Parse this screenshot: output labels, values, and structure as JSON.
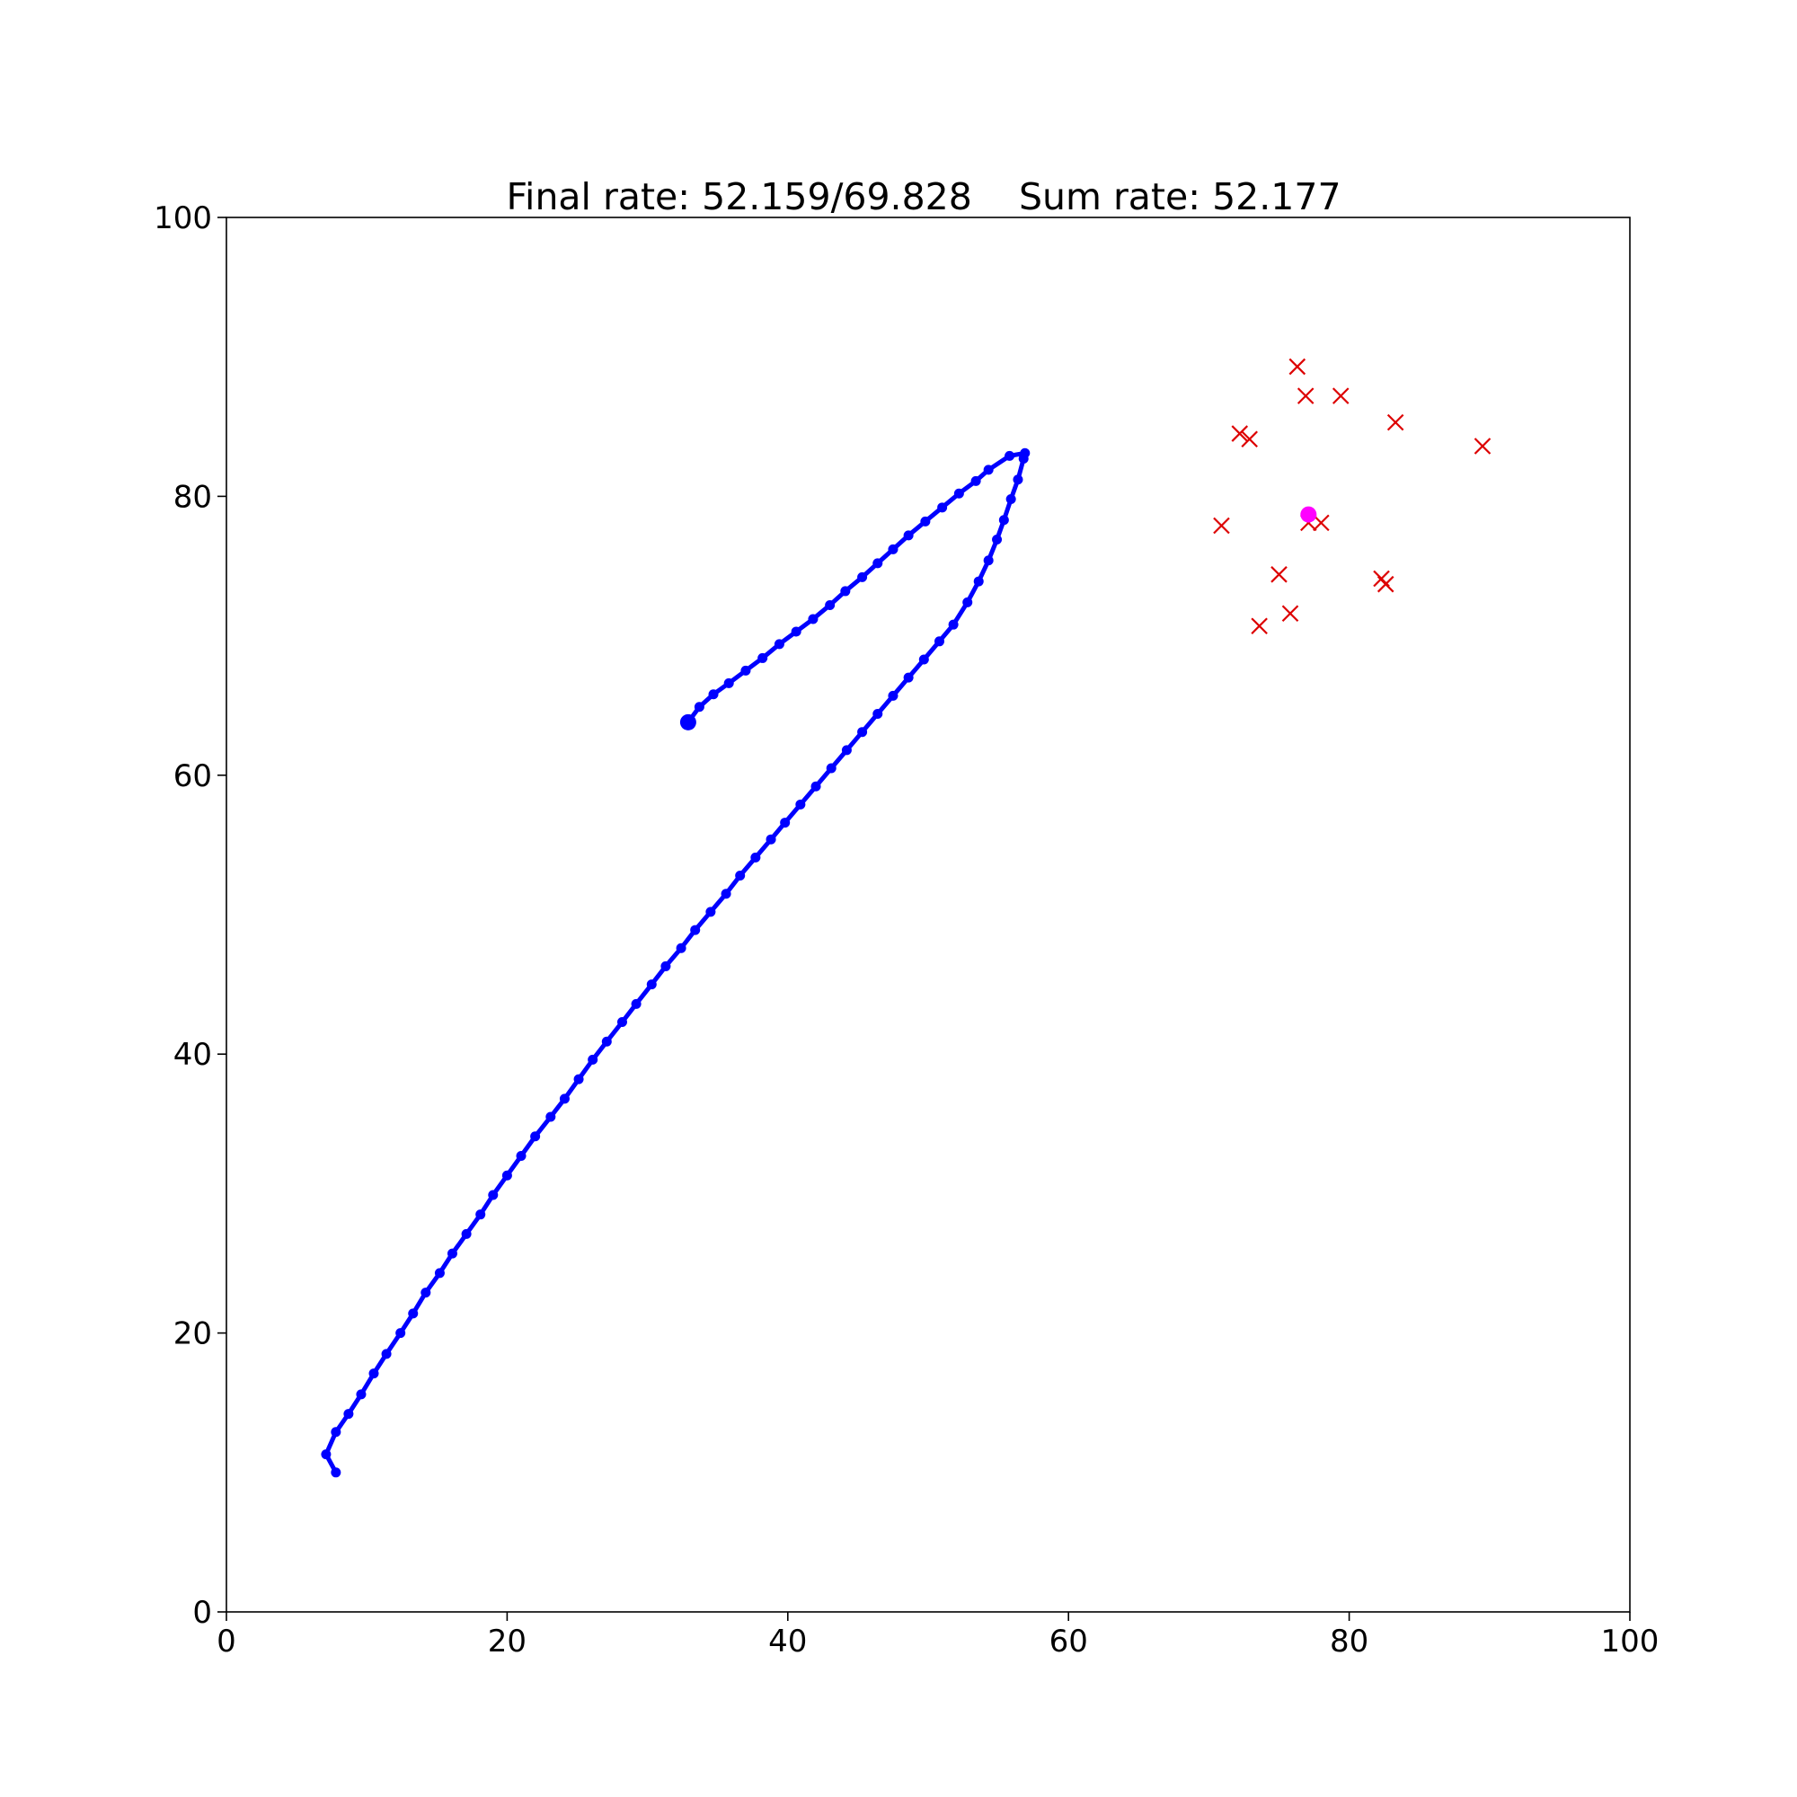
{
  "chart_data": {
    "type": "scatter",
    "title": "Final rate: 52.159/69.828    Sum rate: 52.177",
    "xlabel": "",
    "ylabel": "",
    "xlim": [
      0,
      100
    ],
    "ylim": [
      0,
      100
    ],
    "grid": false,
    "x_ticks": [
      "0",
      "20",
      "40",
      "60",
      "80",
      "100"
    ],
    "y_ticks": [
      "0",
      "20",
      "40",
      "60",
      "80",
      "100"
    ],
    "colors": {
      "trajectory": "#0000ff",
      "users": "#dd0000",
      "target": "#ff00ff"
    },
    "series": [
      {
        "name": "trajectory",
        "style": "line-with-markers",
        "x": [
          7.8,
          7.1,
          7.8,
          8.7,
          9.6,
          10.5,
          11.4,
          12.4,
          13.3,
          14.2,
          15.2,
          16.1,
          17.1,
          18.1,
          19.0,
          20.0,
          21.0,
          22.0,
          23.1,
          24.1,
          25.1,
          26.1,
          27.1,
          28.2,
          29.2,
          30.3,
          31.3,
          32.4,
          33.4,
          34.5,
          35.6,
          36.6,
          37.7,
          38.8,
          39.8,
          40.9,
          42.0,
          43.1,
          44.2,
          45.3,
          46.4,
          47.5,
          48.6,
          49.7,
          50.8,
          51.8,
          52.8,
          53.6,
          54.3,
          54.9,
          55.4,
          55.9,
          56.4,
          56.8,
          56.9,
          55.8,
          54.3,
          53.4,
          52.2,
          51.0,
          49.8,
          48.6,
          47.5,
          46.4,
          45.3,
          44.1,
          43.0,
          41.8,
          40.6,
          39.4,
          38.2,
          37.0,
          35.8,
          34.7,
          33.7,
          32.9
        ],
        "y": [
          10.0,
          11.3,
          12.9,
          14.2,
          15.6,
          17.1,
          18.5,
          20.0,
          21.4,
          22.9,
          24.3,
          25.7,
          27.1,
          28.5,
          29.9,
          31.3,
          32.7,
          34.1,
          35.5,
          36.8,
          38.2,
          39.6,
          40.9,
          42.3,
          43.6,
          45.0,
          46.3,
          47.6,
          48.9,
          50.2,
          51.5,
          52.8,
          54.1,
          55.4,
          56.6,
          57.9,
          59.2,
          60.5,
          61.8,
          63.1,
          64.4,
          65.7,
          67.0,
          68.3,
          69.6,
          70.8,
          72.4,
          73.9,
          75.4,
          76.9,
          78.3,
          79.8,
          81.2,
          82.7,
          83.1,
          82.9,
          81.9,
          81.1,
          80.2,
          79.2,
          78.2,
          77.2,
          76.2,
          75.2,
          74.2,
          73.2,
          72.2,
          71.2,
          70.3,
          69.4,
          68.4,
          67.5,
          66.6,
          65.8,
          64.9,
          63.8
        ]
      },
      {
        "name": "users",
        "style": "x-markers",
        "x": [
          76.3,
          76.9,
          79.4,
          83.3,
          72.2,
          72.9,
          89.5,
          70.9,
          77.1,
          78.0,
          75.0,
          82.3,
          82.6,
          75.8,
          73.6
        ],
        "y": [
          89.3,
          87.2,
          87.2,
          85.3,
          84.5,
          84.1,
          83.6,
          77.9,
          78.1,
          78.1,
          74.4,
          74.1,
          73.7,
          71.6,
          70.7
        ]
      },
      {
        "name": "target",
        "style": "filled-circle",
        "x": [
          77.1
        ],
        "y": [
          78.7
        ]
      }
    ]
  }
}
